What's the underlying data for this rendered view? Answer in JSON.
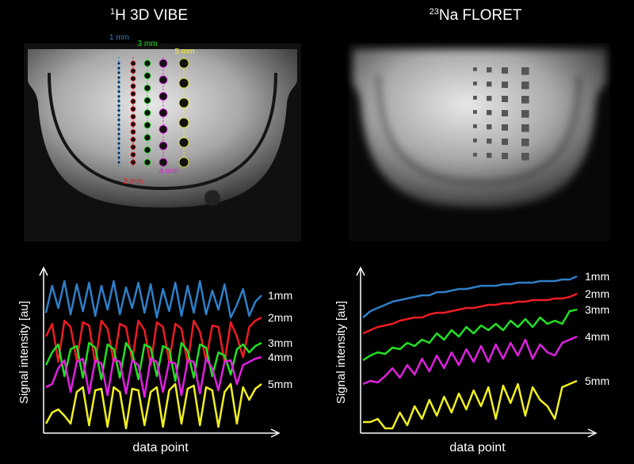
{
  "images": [
    {
      "isotope": "1",
      "name": "H 3D VIBE",
      "annotations": [
        "1 mm",
        "3 mm",
        "5 mm",
        "2 mm",
        "4 mm"
      ]
    },
    {
      "isotope": "23",
      "name": "Na FLORET"
    }
  ],
  "chart_data": [
    {
      "type": "line",
      "xlabel": "data point",
      "ylabel": "Signal intensity [au]",
      "ylim": [
        0,
        100
      ],
      "series": [
        {
          "name": "1mm",
          "color": "#2f7fc8",
          "values": [
            75,
            92,
            78,
            95,
            74,
            93,
            76,
            94,
            73,
            92,
            77,
            95,
            74,
            91,
            78,
            94,
            75,
            93,
            72,
            90,
            76,
            94,
            73,
            92,
            75,
            95,
            74,
            89,
            77,
            93,
            72,
            80,
            90,
            73,
            82,
            86
          ]
        },
        {
          "name": "2mm",
          "color": "#ee1c24",
          "values": [
            60,
            68,
            44,
            70,
            66,
            45,
            69,
            67,
            43,
            70,
            65,
            44,
            68,
            66,
            45,
            70,
            64,
            42,
            69,
            66,
            44,
            68,
            65,
            43,
            70,
            63,
            45,
            67,
            66,
            44,
            69,
            60,
            47,
            66,
            70,
            72
          ]
        },
        {
          "name": "3mm",
          "color": "#22e022",
          "values": [
            42,
            50,
            55,
            35,
            52,
            54,
            34,
            56,
            53,
            33,
            55,
            52,
            34,
            56,
            50,
            33,
            55,
            53,
            35,
            54,
            52,
            32,
            56,
            51,
            34,
            55,
            53,
            35,
            50,
            48,
            36,
            52,
            55,
            50,
            54,
            56
          ]
        },
        {
          "name": "4mm",
          "color": "#e020e0",
          "values": [
            28,
            30,
            40,
            45,
            25,
            44,
            46,
            24,
            45,
            43,
            23,
            46,
            44,
            24,
            45,
            42,
            22,
            46,
            44,
            25,
            44,
            43,
            23,
            45,
            44,
            24,
            46,
            40,
            26,
            44,
            45,
            30,
            42,
            44,
            46,
            47
          ]
        },
        {
          "name": "5mm",
          "color": "#f0f020",
          "values": [
            5,
            12,
            14,
            10,
            5,
            25,
            28,
            4,
            26,
            27,
            3,
            28,
            25,
            2,
            27,
            26,
            4,
            25,
            28,
            3,
            26,
            30,
            5,
            27,
            29,
            4,
            28,
            26,
            3,
            25,
            30,
            5,
            28,
            20,
            27,
            30
          ]
        }
      ]
    },
    {
      "type": "line",
      "xlabel": "data point",
      "ylabel": "Signal intensity [au]",
      "ylim": [
        0,
        100
      ],
      "series": [
        {
          "name": "1mm",
          "color": "#2f7fc8",
          "values": [
            72,
            76,
            78,
            80,
            82,
            83,
            84,
            85,
            86,
            86,
            88,
            88,
            89,
            90,
            90,
            91,
            92,
            92,
            92,
            93,
            93,
            94,
            94,
            94,
            95,
            95,
            95,
            96,
            96,
            98
          ]
        },
        {
          "name": "2mm",
          "color": "#ee1c24",
          "values": [
            62,
            64,
            66,
            67,
            68,
            70,
            71,
            72,
            72,
            74,
            75,
            75,
            76,
            77,
            78,
            78,
            79,
            80,
            80,
            81,
            81,
            82,
            82,
            83,
            83,
            83,
            84,
            84,
            85,
            87
          ]
        },
        {
          "name": "3mm",
          "color": "#22e022",
          "values": [
            45,
            48,
            50,
            49,
            53,
            52,
            56,
            54,
            58,
            56,
            62,
            58,
            64,
            60,
            66,
            62,
            67,
            64,
            68,
            64,
            70,
            66,
            71,
            66,
            72,
            68,
            70,
            68,
            76,
            77
          ]
        },
        {
          "name": "4mm",
          "color": "#e020e0",
          "values": [
            30,
            32,
            31,
            35,
            40,
            34,
            42,
            36,
            46,
            38,
            48,
            40,
            50,
            42,
            52,
            44,
            54,
            44,
            55,
            46,
            56,
            48,
            58,
            46,
            55,
            50,
            48,
            56,
            58,
            60
          ]
        },
        {
          "name": "5mm",
          "color": "#f0f020",
          "values": [
            6,
            6,
            8,
            2,
            2,
            12,
            4,
            16,
            8,
            20,
            10,
            22,
            12,
            24,
            14,
            26,
            16,
            28,
            8,
            29,
            18,
            30,
            10,
            28,
            20,
            16,
            8,
            28,
            30,
            32
          ]
        }
      ]
    }
  ]
}
